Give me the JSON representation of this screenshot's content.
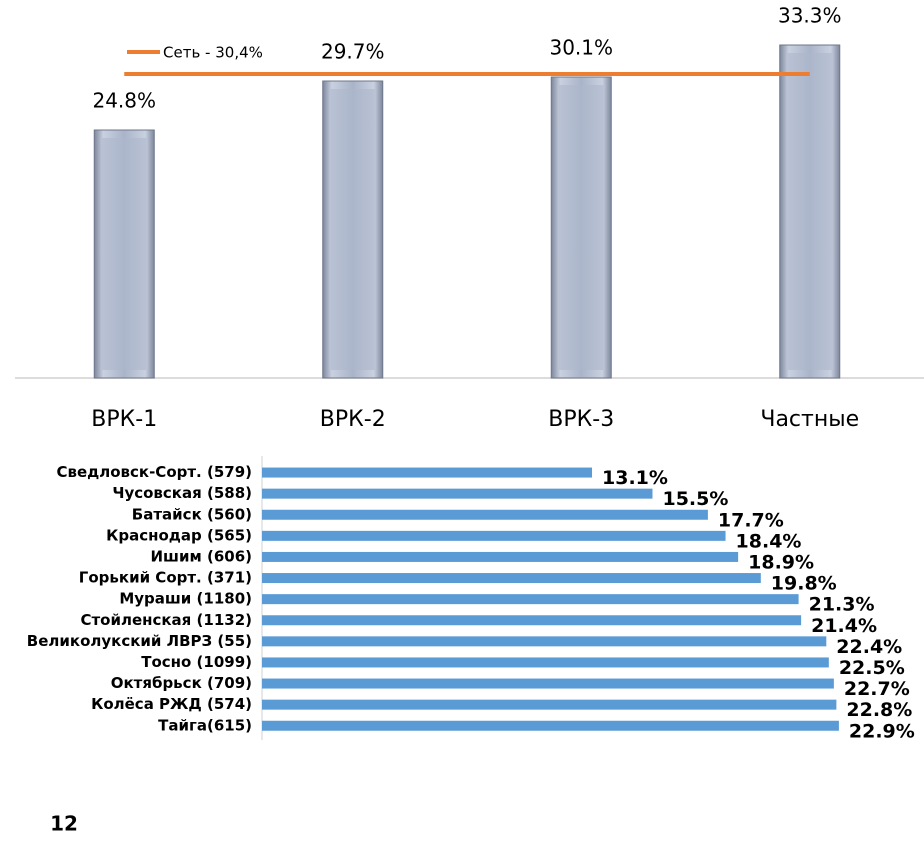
{
  "chart_data": [
    {
      "type": "bar",
      "categories": [
        "ВРК-1",
        "ВРК-2",
        "ВРК-3",
        "Частные"
      ],
      "values": [
        24.8,
        29.7,
        30.1,
        33.3
      ],
      "value_labels": [
        "24.8%",
        "29.7%",
        "30.1%",
        "33.3%"
      ],
      "color": "#aeb8cc",
      "ylim": [
        0,
        35
      ],
      "reference_line": {
        "value": 30.4,
        "label": "Сеть - 30,4%",
        "color": "#ed7d31"
      }
    },
    {
      "type": "barh",
      "categories": [
        "Сведловск-Сорт. (579)",
        "Чусовская (588)",
        "Батайск (560)",
        "Краснодар (565)",
        "Ишим (606)",
        "Горький Сорт. (371)",
        "Мураши (1180)",
        "Стойленская (1132)",
        "Великолукский ЛВРЗ (55)",
        "Тосно (1099)",
        "Октябрьск (709)",
        "Колёса РЖД (574)",
        "Тайга(615)"
      ],
      "values": [
        13.1,
        15.5,
        17.7,
        18.4,
        18.9,
        19.8,
        21.3,
        21.4,
        22.4,
        22.5,
        22.7,
        22.8,
        22.9
      ],
      "value_labels": [
        "13.1%",
        "15.5%",
        "17.7%",
        "18.4%",
        "18.9%",
        "19.8%",
        "21.3%",
        "21.4%",
        "22.4%",
        "22.5%",
        "22.7%",
        "22.8%",
        "22.9%"
      ],
      "color": "#5b9bd5",
      "xlim": [
        0,
        26
      ]
    }
  ],
  "page_number": "12"
}
